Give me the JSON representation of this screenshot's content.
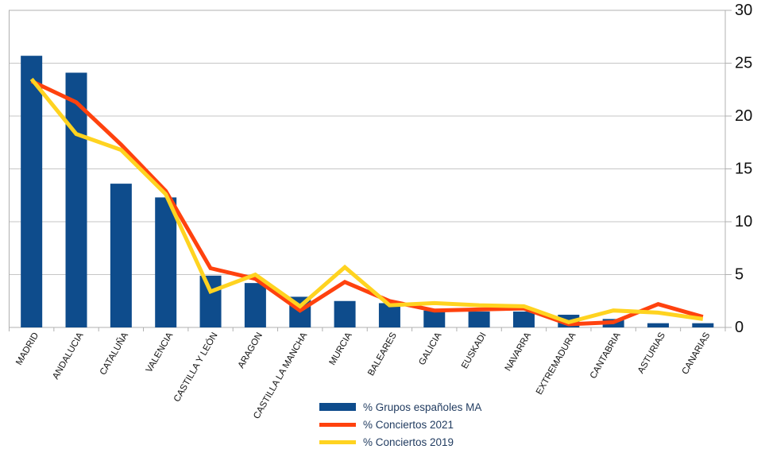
{
  "chart_data": {
    "type": "bar+line",
    "title": "",
    "categories": [
      "MADRID",
      "ANDALUCIA",
      "CATALUÑA",
      "VALENCIA",
      "CASTILLA Y LEÓN",
      "ARAGON",
      "CASTILLA LA MANCHA",
      "MURCIA",
      "BALEARES",
      "GALICIA",
      "EUSKADI",
      "NAVARRA",
      "EXTREMADURA",
      "CANTABRIA",
      "ASTURIAS",
      "CANARIAS"
    ],
    "series": [
      {
        "name": "% Grupos españoles MA",
        "type": "bar",
        "color": "#0e4c8c",
        "values": [
          25.7,
          24.1,
          13.6,
          12.3,
          4.9,
          4.2,
          2.9,
          2.5,
          2.3,
          1.6,
          1.5,
          1.5,
          1.2,
          0.8,
          0.4,
          0.4
        ]
      },
      {
        "name": "% Conciertos 2021",
        "type": "line",
        "color": "#ff420e",
        "values": [
          23.3,
          21.3,
          17.3,
          12.9,
          5.6,
          4.6,
          1.6,
          4.3,
          2.5,
          1.6,
          1.7,
          1.8,
          0.3,
          0.5,
          2.2,
          1.0
        ]
      },
      {
        "name": "% Conciertos 2019",
        "type": "line",
        "color": "#ffd320",
        "values": [
          23.5,
          18.3,
          16.8,
          12.6,
          3.4,
          5.0,
          2.0,
          5.7,
          2.1,
          2.3,
          2.1,
          2.0,
          0.5,
          1.6,
          1.4,
          0.8
        ]
      }
    ],
    "xlabel": "",
    "ylabel": "",
    "ylim": [
      0,
      30
    ],
    "yticks": [
      0,
      5,
      10,
      15,
      20,
      25,
      30
    ],
    "y_axis_side": "right",
    "grid": true,
    "legend_position": "bottom-center",
    "style": {
      "grid_color": "#c6c6c6",
      "border_color": "#b0b0b0",
      "axis_text_color": "#111111",
      "legend_text_color": "#1f3a5f"
    }
  }
}
